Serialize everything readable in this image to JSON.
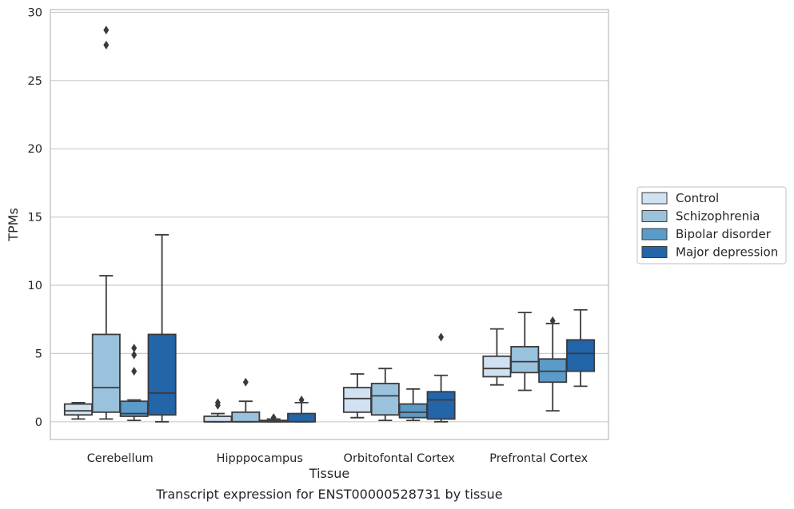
{
  "chart_data": {
    "type": "box",
    "xlabel": "Tissue",
    "ylabel": "TPMs",
    "caption": "Transcript expression for ENST00000528731 by tissue",
    "ylim": [
      -1.3,
      30.2
    ],
    "yticks": [
      0,
      5,
      10,
      15,
      20,
      25,
      30
    ],
    "grid": "horizontal",
    "legend_position": "right",
    "categories": [
      "Cerebellum",
      "Hipppocampus",
      "Orbitofontal Cortex",
      "Prefrontal Cortex"
    ],
    "series": [
      {
        "name": "Control",
        "color": "#d0e1f2",
        "boxes": [
          {
            "whislo": 0.2,
            "q1": 0.5,
            "med": 0.8,
            "q3": 1.3,
            "whishi": 1.4,
            "fliers": []
          },
          {
            "whislo": 0.0,
            "q1": 0.0,
            "med": 0.0,
            "q3": 0.4,
            "whishi": 0.6,
            "fliers": [
              1.2,
              1.4
            ]
          },
          {
            "whislo": 0.3,
            "q1": 0.7,
            "med": 1.7,
            "q3": 2.5,
            "whishi": 3.5,
            "fliers": []
          },
          {
            "whislo": 2.7,
            "q1": 3.3,
            "med": 3.9,
            "q3": 4.8,
            "whishi": 6.8,
            "fliers": []
          }
        ]
      },
      {
        "name": "Schizophrenia",
        "color": "#9ac2dd",
        "boxes": [
          {
            "whislo": 0.2,
            "q1": 0.7,
            "med": 2.5,
            "q3": 6.4,
            "whishi": 10.7,
            "fliers": [
              27.6,
              28.7
            ]
          },
          {
            "whislo": 0.0,
            "q1": 0.0,
            "med": 0.0,
            "q3": 0.7,
            "whishi": 1.5,
            "fliers": [
              2.9
            ]
          },
          {
            "whislo": 0.1,
            "q1": 0.5,
            "med": 1.9,
            "q3": 2.8,
            "whishi": 3.9,
            "fliers": []
          },
          {
            "whislo": 2.3,
            "q1": 3.6,
            "med": 4.4,
            "q3": 5.5,
            "whishi": 8.0,
            "fliers": []
          }
        ]
      },
      {
        "name": "Bipolar disorder",
        "color": "#5b9bc9",
        "boxes": [
          {
            "whislo": 0.1,
            "q1": 0.4,
            "med": 0.6,
            "q3": 1.5,
            "whishi": 1.6,
            "fliers": [
              3.7,
              4.9,
              5.4
            ]
          },
          {
            "whislo": 0.0,
            "q1": 0.0,
            "med": 0.0,
            "q3": 0.1,
            "whishi": 0.2,
            "fliers": [
              0.3
            ]
          },
          {
            "whislo": 0.1,
            "q1": 0.3,
            "med": 0.7,
            "q3": 1.3,
            "whishi": 2.4,
            "fliers": []
          },
          {
            "whislo": 0.8,
            "q1": 2.9,
            "med": 3.7,
            "q3": 4.6,
            "whishi": 7.2,
            "fliers": [
              7.4
            ]
          }
        ]
      },
      {
        "name": "Major depression",
        "color": "#2265a9",
        "boxes": [
          {
            "whislo": 0.0,
            "q1": 0.5,
            "med": 2.1,
            "q3": 6.4,
            "whishi": 13.7,
            "fliers": []
          },
          {
            "whislo": 0.0,
            "q1": 0.0,
            "med": 0.0,
            "q3": 0.6,
            "whishi": 1.4,
            "fliers": [
              1.6
            ]
          },
          {
            "whislo": 0.0,
            "q1": 0.2,
            "med": 1.6,
            "q3": 2.2,
            "whishi": 3.4,
            "fliers": [
              6.2
            ]
          },
          {
            "whislo": 2.6,
            "q1": 3.7,
            "med": 5.0,
            "q3": 6.0,
            "whishi": 8.2,
            "fliers": []
          }
        ]
      }
    ]
  },
  "colors": {
    "grid": "#cccccc",
    "frame": "#cccccc",
    "box_edge": "#3b3b3b",
    "legend_border": "#cccccc"
  }
}
